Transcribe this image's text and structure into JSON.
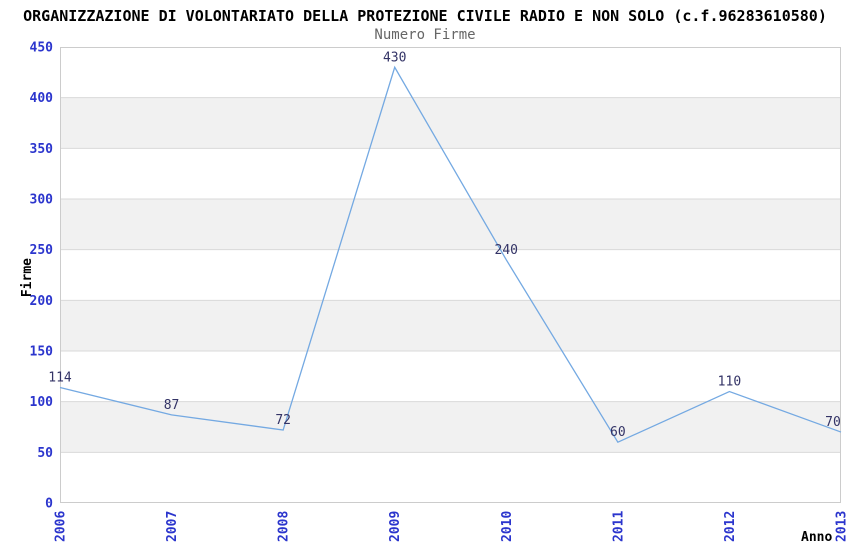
{
  "chart_data": {
    "type": "line",
    "title": "ORGANIZZAZIONE DI VOLONTARIATO DELLA PROTEZIONE CIVILE RADIO E NON SOLO (c.f.96283610580)",
    "subtitle": "Numero Firme",
    "xlabel": "Anno",
    "ylabel": "Firme",
    "categories": [
      "2006",
      "2007",
      "2008",
      "2009",
      "2010",
      "2011",
      "2012",
      "2013"
    ],
    "values": [
      114,
      87,
      72,
      430,
      240,
      60,
      110,
      70
    ],
    "ylim": [
      0,
      450
    ],
    "ytick_step": 50,
    "grid": true,
    "legend": "none",
    "colors": {
      "line": "#74a9e2",
      "tick_label": "#2b35cd",
      "data_label": "#333366",
      "band": "#f1f1f1",
      "gridline": "#d9d9d9",
      "plot_border": "#cccccc",
      "title": "#000000",
      "subtitle": "#666666"
    }
  }
}
